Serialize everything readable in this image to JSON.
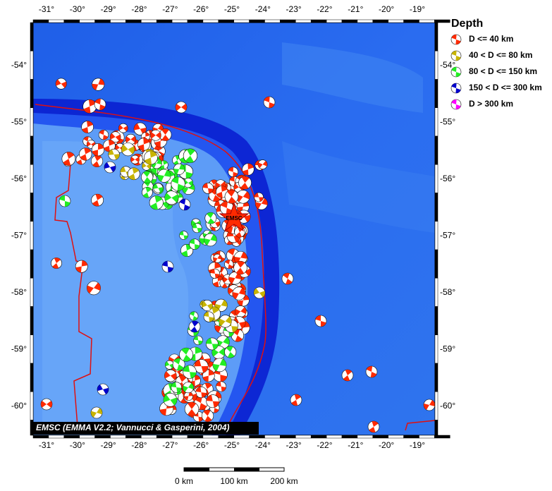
{
  "map": {
    "lon_labels": [
      "-31°",
      "-30°",
      "-29°",
      "-28°",
      "-27°",
      "-26°",
      "-25°",
      "-24°",
      "-23°",
      "-22°",
      "-21°",
      "-20°",
      "-19°"
    ],
    "lat_labels": [
      "-54°",
      "-55°",
      "-56°",
      "-57°",
      "-58°",
      "-59°",
      "-60°"
    ],
    "star_label": "EMSC",
    "credit": "EMSC (EMMA V2.2; Vannucci & Gasperini, 2004)",
    "scale_labels": [
      "0 km",
      "100 km",
      "200 km"
    ]
  },
  "legend": {
    "title": "Depth",
    "items": [
      {
        "label": "D <= 40 km",
        "color": "#ff2a00"
      },
      {
        "label": "40 < D <= 80 km",
        "color": "#c8b400"
      },
      {
        "label": "80 < D <= 150 km",
        "color": "#22ee22"
      },
      {
        "label": "150 < D <= 300 km",
        "color": "#0000cc"
      },
      {
        "label": "D > 300 km",
        "color": "#ff00ff"
      }
    ]
  }
}
